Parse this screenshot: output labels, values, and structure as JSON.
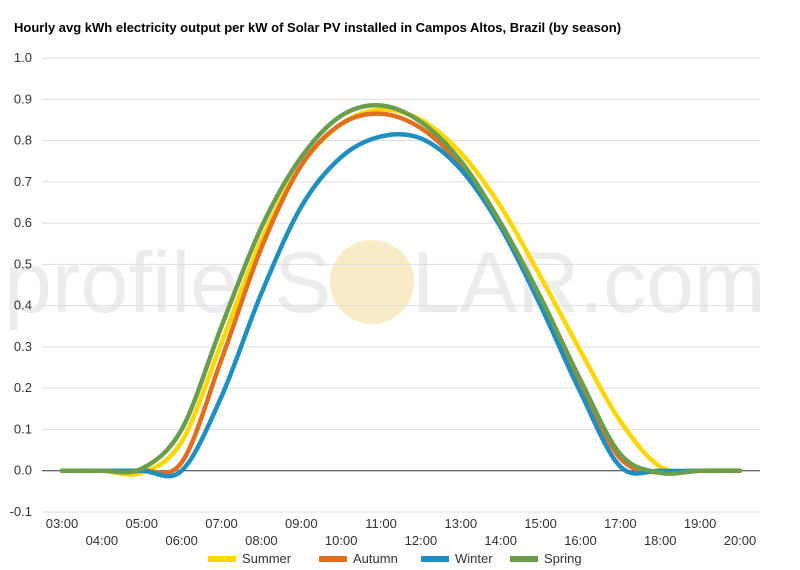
{
  "watermark": {
    "part1": "profile",
    "part2": "S",
    "part3": "LAR.com",
    "sun_color": "#f7e0a0"
  },
  "chart_data": {
    "type": "line",
    "title": "Hourly avg kWh electricity output per kW of Solar PV installed in Campos Altos, Brazil (by season)",
    "xlabel": "",
    "ylabel": "",
    "x": [
      "03:00",
      "04:00",
      "05:00",
      "06:00",
      "07:00",
      "08:00",
      "09:00",
      "10:00",
      "11:00",
      "12:00",
      "13:00",
      "14:00",
      "15:00",
      "16:00",
      "17:00",
      "18:00",
      "19:00",
      "20:00"
    ],
    "x_ticks_upper": [
      "03:00",
      "05:00",
      "07:00",
      "09:00",
      "11:00",
      "13:00",
      "15:00",
      "17:00",
      "19:00"
    ],
    "x_ticks_lower": [
      "04:00",
      "06:00",
      "08:00",
      "10:00",
      "12:00",
      "14:00",
      "16:00",
      "18:00",
      "20:00"
    ],
    "ylim": [
      -0.1,
      1.0
    ],
    "y_ticks": [
      "-0.1",
      "0.0",
      "0.1",
      "0.2",
      "0.3",
      "0.4",
      "0.5",
      "0.6",
      "0.7",
      "0.8",
      "0.9",
      "1.0"
    ],
    "grid": true,
    "legend_position": "bottom",
    "series": [
      {
        "name": "Summer",
        "color": "#ffd700",
        "values": [
          0.0,
          0.0,
          -0.005,
          0.07,
          0.31,
          0.56,
          0.74,
          0.84,
          0.875,
          0.85,
          0.77,
          0.64,
          0.47,
          0.29,
          0.12,
          0.01,
          0.0,
          0.0
        ]
      },
      {
        "name": "Autumn",
        "color": "#e07020",
        "values": [
          0.0,
          0.0,
          0.0,
          0.02,
          0.27,
          0.54,
          0.74,
          0.84,
          0.865,
          0.83,
          0.74,
          0.6,
          0.41,
          0.21,
          0.03,
          -0.005,
          0.0,
          0.0
        ]
      },
      {
        "name": "Winter",
        "color": "#1e8fc0",
        "values": [
          0.0,
          0.0,
          0.0,
          0.0,
          0.18,
          0.43,
          0.64,
          0.76,
          0.81,
          0.805,
          0.73,
          0.59,
          0.4,
          0.19,
          0.01,
          0.0,
          0.0,
          0.0
        ]
      },
      {
        "name": "Spring",
        "color": "#6a9e4c",
        "values": [
          0.0,
          0.0,
          0.005,
          0.1,
          0.35,
          0.59,
          0.76,
          0.86,
          0.885,
          0.845,
          0.75,
          0.6,
          0.42,
          0.22,
          0.04,
          -0.005,
          0.0,
          0.0
        ]
      }
    ]
  }
}
